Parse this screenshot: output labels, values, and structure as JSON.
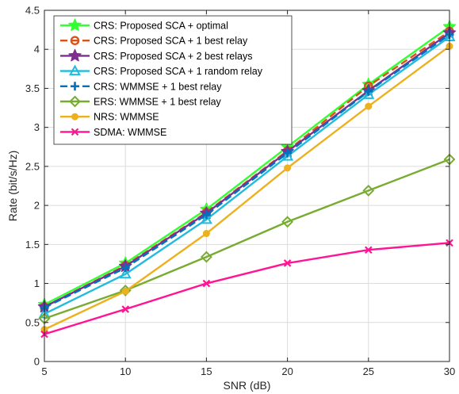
{
  "chart_data": {
    "type": "line",
    "xlabel": "SNR (dB)",
    "ylabel": "Rate (bit/s/Hz)",
    "xlim": [
      5,
      30
    ],
    "ylim": [
      0,
      4.5
    ],
    "xticks": [
      5,
      10,
      15,
      20,
      25,
      30
    ],
    "yticks": [
      0,
      0.5,
      1,
      1.5,
      2,
      2.5,
      3,
      3.5,
      4,
      4.5
    ],
    "grid": true,
    "legend_position": "top-left",
    "x": [
      5,
      10,
      15,
      20,
      25,
      30
    ],
    "series": [
      {
        "name": "CRS: Proposed SCA + optimal",
        "color": "#33ff33",
        "marker": "star",
        "dash": "solid",
        "values": [
          0.73,
          1.26,
          1.95,
          2.75,
          3.55,
          4.29
        ]
      },
      {
        "name": "CRS: Proposed SCA + 1 best relay",
        "color": "#d95319",
        "marker": "circle",
        "dash": "dashed",
        "values": [
          0.7,
          1.23,
          1.91,
          2.7,
          3.53,
          4.23
        ]
      },
      {
        "name": "CRS: Proposed SCA + 2 best relays",
        "color": "#7e2f8e",
        "marker": "star",
        "dash": "solid",
        "values": [
          0.7,
          1.22,
          1.9,
          2.69,
          3.47,
          4.21
        ]
      },
      {
        "name": "CRS: Proposed SCA + 1 random relay",
        "color": "#22bbdd",
        "marker": "triangle",
        "dash": "solid",
        "values": [
          0.61,
          1.12,
          1.82,
          2.63,
          3.42,
          4.16
        ]
      },
      {
        "name": "CRS: WMMSE + 1 best relay",
        "color": "#0072bd",
        "marker": "plus",
        "dash": "dashed",
        "values": [
          0.69,
          1.2,
          1.88,
          2.67,
          3.46,
          4.19
        ]
      },
      {
        "name": "ERS: WMMSE + 1 best relay",
        "color": "#77ac30",
        "marker": "diamond",
        "dash": "solid",
        "values": [
          0.55,
          0.91,
          1.34,
          1.79,
          2.19,
          2.59
        ]
      },
      {
        "name": "NRS: WMMSE",
        "color": "#edb120",
        "marker": "dot",
        "dash": "solid",
        "values": [
          0.41,
          0.9,
          1.64,
          2.48,
          3.27,
          4.04
        ]
      },
      {
        "name": "SDMA: WMMSE",
        "color": "#ff1493",
        "marker": "x",
        "dash": "solid",
        "values": [
          0.35,
          0.67,
          1.0,
          1.26,
          1.43,
          1.52
        ]
      }
    ]
  }
}
